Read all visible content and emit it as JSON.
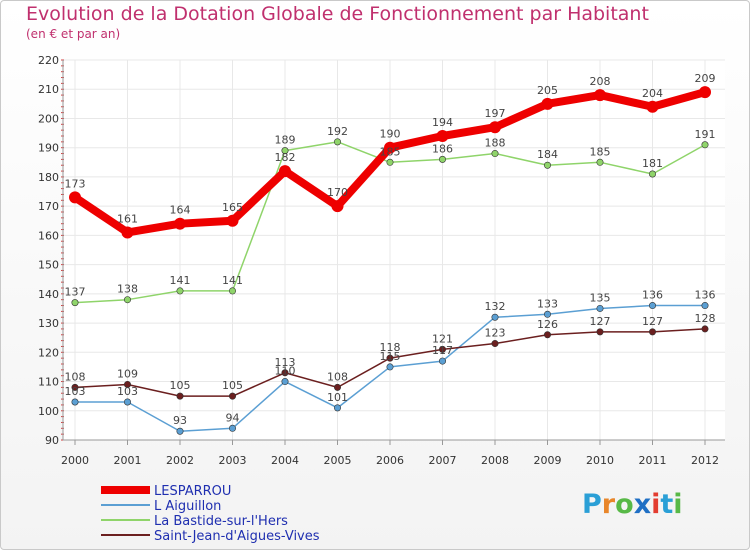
{
  "title": "Evolution de la Dotation Globale de Fonctionnement par Habitant",
  "subtitle": "(en € et par an)",
  "logo": {
    "text": "Proxiti",
    "letters": [
      "P",
      "r",
      "o",
      "x",
      "i",
      "t",
      "i"
    ],
    "letter_colors": [
      "#2a9fd6",
      "#e8862a",
      "#58b947",
      "#1f6fc4",
      "#e33d30",
      "#2a9fd6",
      "#58b947"
    ]
  },
  "colors": {
    "text_axis": "#333333",
    "grid": "#e8e8e8",
    "axis": "#999999"
  },
  "chart_data": {
    "type": "line",
    "title": "Evolution de la Dotation Globale de Fonctionnement par Habitant",
    "subtitle": "(en € et par an)",
    "xlabel": "",
    "ylabel": "",
    "x": [
      "2000",
      "2001",
      "2002",
      "2003",
      "2004",
      "2005",
      "2006",
      "2007",
      "2008",
      "2009",
      "2010",
      "2011",
      "2012"
    ],
    "ylim": [
      90,
      220
    ],
    "yticks": [
      90,
      100,
      110,
      120,
      130,
      140,
      150,
      160,
      170,
      180,
      190,
      200,
      210,
      220
    ],
    "grid": true,
    "legend_position": "bottom-left",
    "series": [
      {
        "name": "LESPARROU",
        "color": "#ee0000",
        "emphasis": true,
        "values": [
          173,
          161,
          164,
          165,
          182,
          170,
          190,
          194,
          197,
          205,
          208,
          204,
          209
        ],
        "labels": [
          "173",
          "161",
          "164",
          "165",
          "182",
          "170",
          "190",
          "194",
          "197",
          "205",
          "208",
          "204",
          "209"
        ]
      },
      {
        "name": "L  Aiguillon",
        "color": "#5b9fd3",
        "emphasis": false,
        "values": [
          103,
          103,
          93,
          94,
          110,
          101,
          115,
          117,
          132,
          133,
          135,
          136,
          136
        ],
        "labels": [
          "103",
          "103",
          "93",
          "94",
          "110",
          "101",
          "115",
          "117",
          "132",
          "133",
          "135",
          "136",
          "136"
        ]
      },
      {
        "name": "La Bastide-sur-l'Hers",
        "color": "#8fd46a",
        "emphasis": false,
        "values": [
          137,
          138,
          141,
          141,
          189,
          192,
          185,
          186,
          188,
          184,
          185,
          181,
          191
        ],
        "labels": [
          "137",
          "138",
          "141",
          "141",
          "189",
          "192",
          "185",
          "186",
          "188",
          "184",
          "185",
          "181",
          "191"
        ]
      },
      {
        "name": "Saint-Jean-d'Aigues-Vives",
        "color": "#6b1f1f",
        "emphasis": false,
        "values": [
          108,
          109,
          105,
          105,
          113,
          108,
          118,
          121,
          123,
          126,
          127,
          127,
          128
        ],
        "labels": [
          "108",
          "109",
          "105",
          "105",
          "113",
          "108",
          "118",
          "121",
          "123",
          "126",
          "127",
          "127",
          "128"
        ]
      }
    ]
  }
}
